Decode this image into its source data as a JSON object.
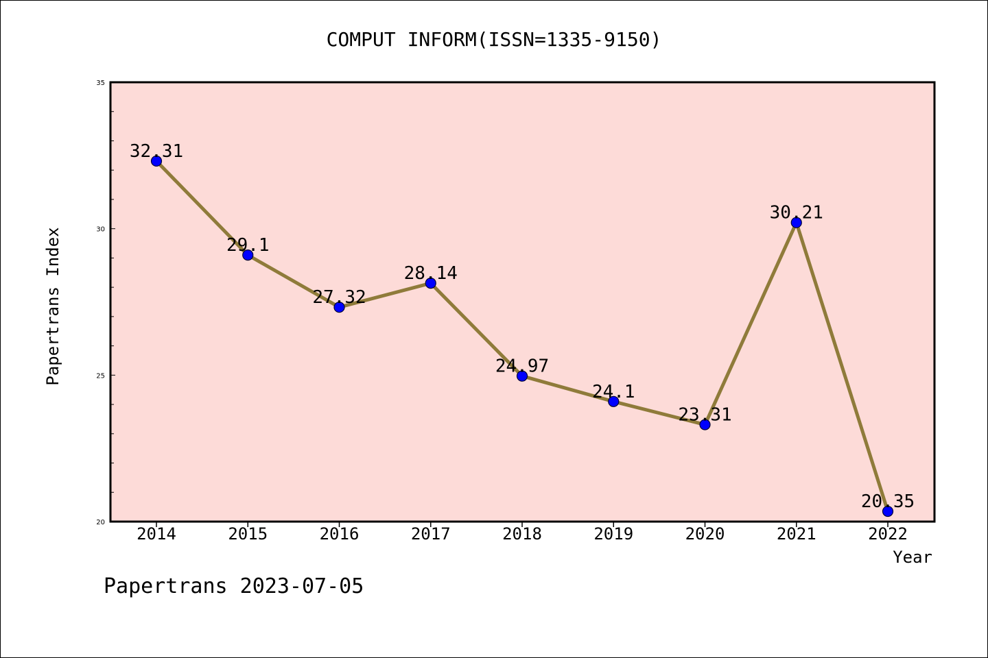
{
  "chart_data": {
    "type": "line",
    "title": "COMPUT INFORM(ISSN=1335-9150)",
    "xlabel": "Year",
    "ylabel": "Papertrans Index",
    "x": [
      "2014",
      "2015",
      "2016",
      "2017",
      "2018",
      "2019",
      "2020",
      "2021",
      "2022"
    ],
    "values": [
      32.31,
      29.1,
      27.32,
      28.14,
      24.97,
      24.1,
      23.31,
      30.21,
      20.35
    ],
    "data_labels": [
      "32.31",
      "29.1",
      "27.32",
      "28.14",
      "24.97",
      "24.1",
      "23.31",
      "30.21",
      "20.35"
    ],
    "ylim": [
      20,
      35
    ],
    "yticks": [
      20,
      25,
      30,
      35
    ],
    "grid": false,
    "colors": {
      "plot_background": "#fddbd8",
      "line": "#8f7b3a",
      "marker": "#0000ff",
      "marker_edge": "#000033"
    }
  },
  "footer": "Papertrans 2023-07-05"
}
